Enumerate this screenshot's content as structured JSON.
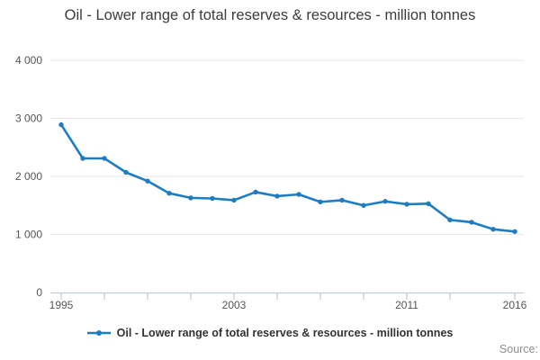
{
  "title": "Oil - Lower range of total reserves & resources - million tonnes",
  "legend": {
    "label": "Oil - Lower range of total reserves & resources - million tonnes"
  },
  "source_label": "Source:",
  "colors": {
    "line": "#1e7dc2",
    "grid": "#e6e6e6",
    "axis": "#c3cedc",
    "title_text": "#3c3c3c",
    "tick_text": "#565656",
    "legend_text": "#333333",
    "source_text": "#8f8f8f"
  },
  "chart_data": {
    "type": "line",
    "title": "Oil - Lower range of total reserves & resources - million tonnes",
    "xlabel": "",
    "ylabel": "",
    "xlim": [
      1995,
      2016
    ],
    "ylim": [
      0,
      4000
    ],
    "grid": "horizontal",
    "legend_position": "bottom",
    "x": [
      1995,
      1996,
      1997,
      1998,
      1999,
      2000,
      2001,
      2002,
      2003,
      2004,
      2005,
      2006,
      2007,
      2008,
      2009,
      2010,
      2011,
      2012,
      2013,
      2014,
      2015,
      2016
    ],
    "series": [
      {
        "name": "Oil - Lower range of total reserves & resources - million tonnes",
        "values": [
          2890,
          2310,
          2310,
          2070,
          1920,
          1710,
          1630,
          1620,
          1590,
          1730,
          1660,
          1690,
          1560,
          1590,
          1500,
          1570,
          1520,
          1530,
          1250,
          1210,
          1090,
          1050
        ]
      }
    ],
    "y_ticks": [
      {
        "value": 0,
        "label": "0"
      },
      {
        "value": 1000,
        "label": "1 000"
      },
      {
        "value": 2000,
        "label": "2 000"
      },
      {
        "value": 3000,
        "label": "3 000"
      },
      {
        "value": 4000,
        "label": "4 000"
      }
    ],
    "x_tick_marks": [
      1995,
      1997,
      1999,
      2001,
      2003,
      2005,
      2007,
      2009,
      2011,
      2013,
      2016
    ],
    "x_tick_labels": [
      {
        "value": 1995,
        "label": "1995"
      },
      {
        "value": 2003,
        "label": "2003"
      },
      {
        "value": 2011,
        "label": "2011"
      },
      {
        "value": 2016,
        "label": "2016"
      }
    ]
  }
}
